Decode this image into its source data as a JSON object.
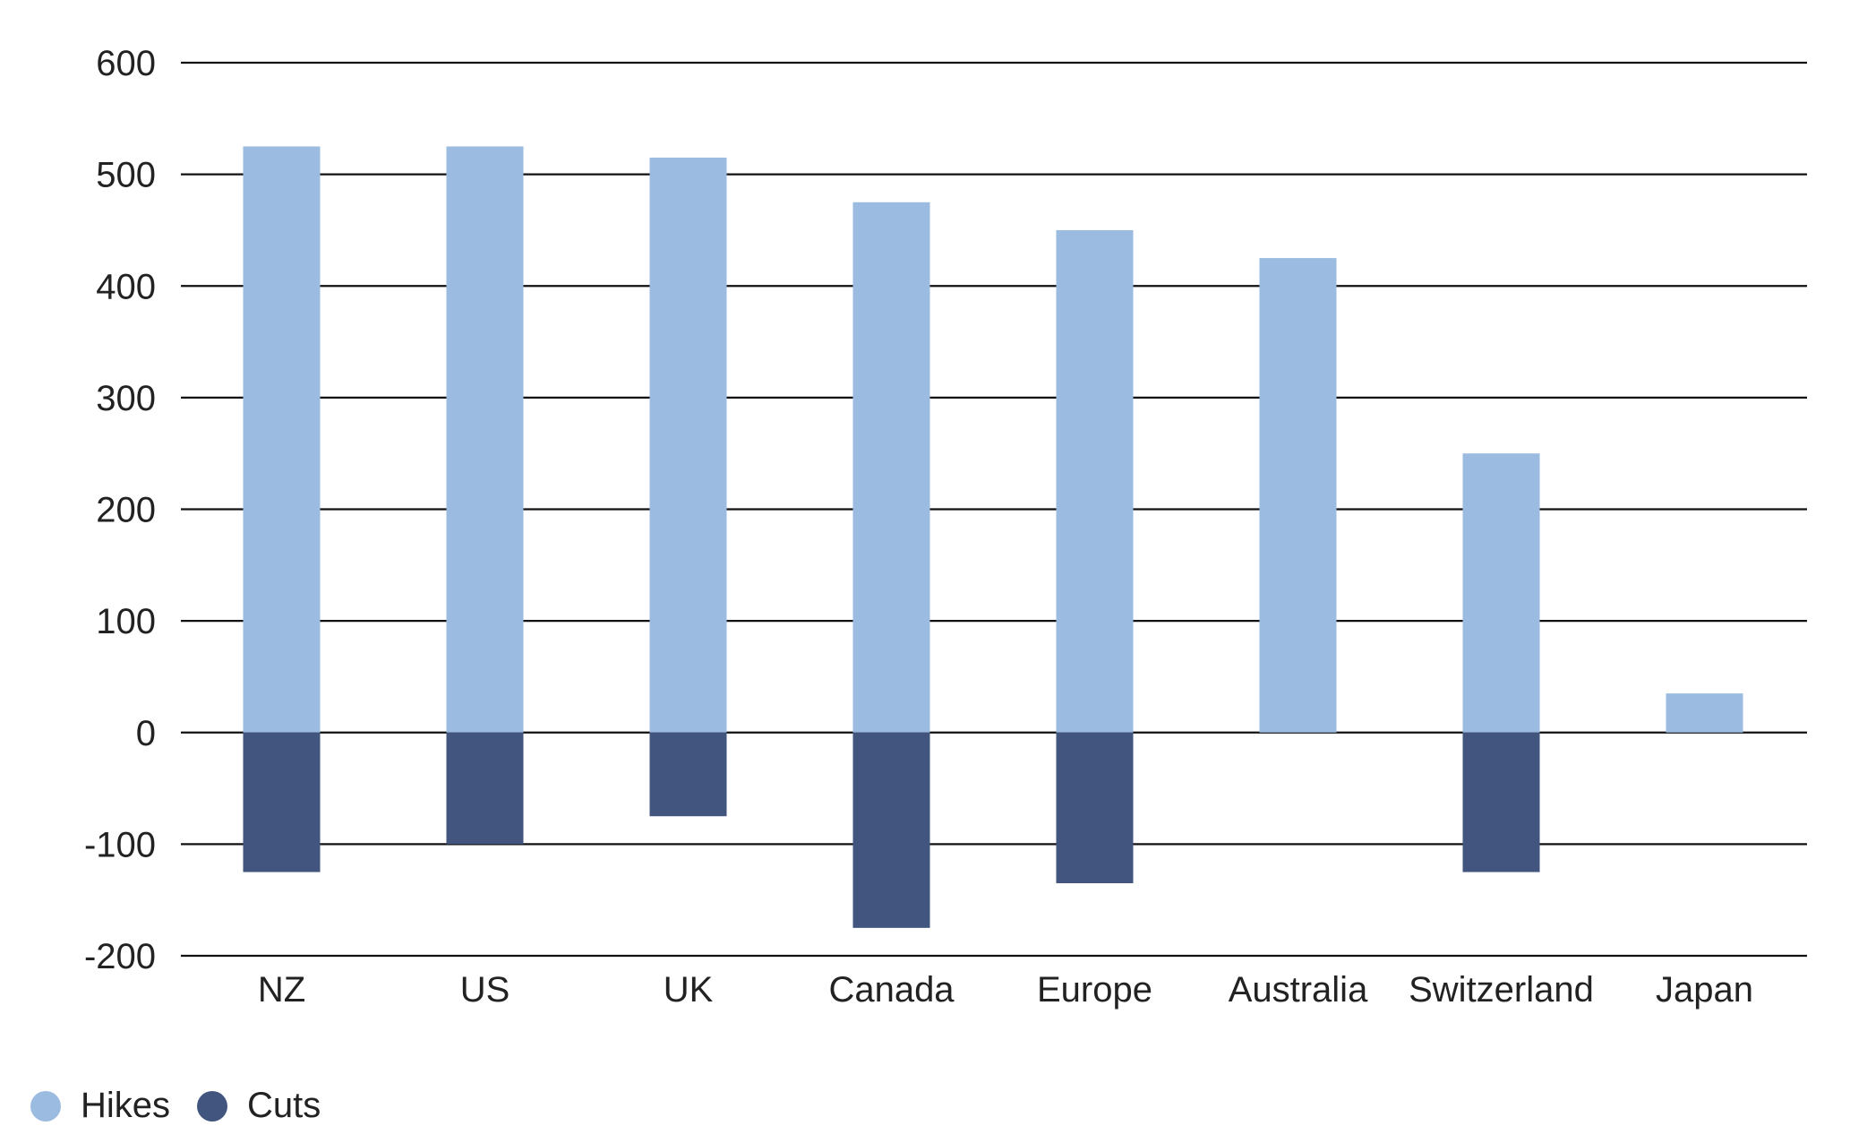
{
  "chart_data": {
    "type": "bar",
    "categories": [
      "NZ",
      "US",
      "UK",
      "Canada",
      "Europe",
      "Australia",
      "Switzerland",
      "Japan"
    ],
    "series": [
      {
        "name": "Hikes",
        "color": "#9bbbe0",
        "values": [
          525,
          525,
          515,
          475,
          450,
          425,
          250,
          35
        ]
      },
      {
        "name": "Cuts",
        "color": "#42557f",
        "values": [
          -125,
          -100,
          -75,
          -175,
          -135,
          0,
          -125,
          0
        ]
      }
    ],
    "ylim": [
      -200,
      600
    ],
    "yticks": [
      -200,
      -100,
      0,
      100,
      200,
      300,
      400,
      500,
      600
    ],
    "grid": true,
    "legend_position": "bottom-left",
    "title": "",
    "xlabel": "",
    "ylabel": ""
  }
}
